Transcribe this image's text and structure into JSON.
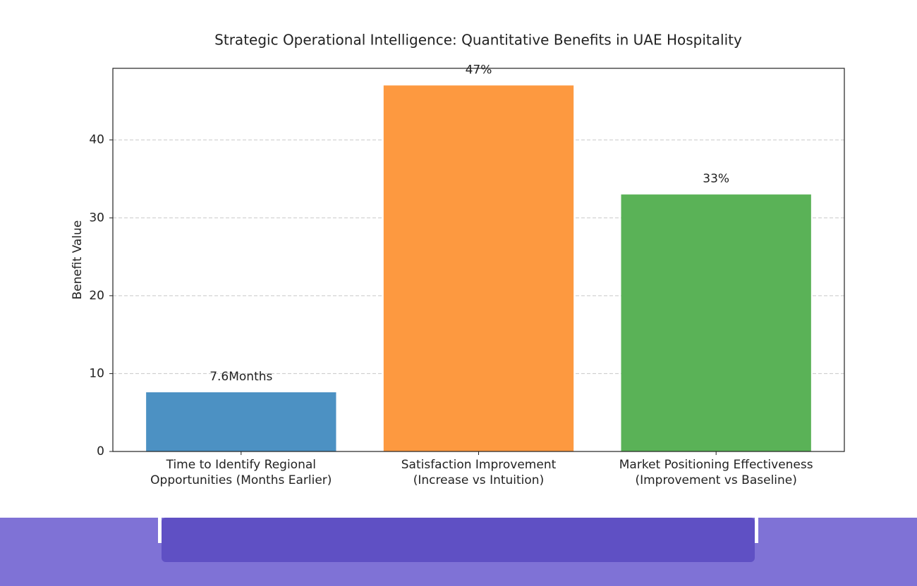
{
  "chart_data": {
    "type": "bar",
    "title": "Strategic Operational Intelligence: Quantitative Benefits in UAE Hospitality",
    "y_label": "Benefit Value",
    "categories": [
      "Time to Identify Regional\nOpportunities (Months Earlier)",
      "Satisfaction Improvement\n(Increase vs Intuition)",
      "Market Positioning Effectiveness\n(Improvement vs Baseline)"
    ],
    "values": [
      7.6,
      47,
      33
    ],
    "value_labels": [
      "7.6Months",
      "47%",
      "33%"
    ],
    "colors": [
      "#4c91c3",
      "#fd9940",
      "#5ab257"
    ],
    "ylim": [
      0,
      49.2
    ],
    "yticks": [
      0,
      10,
      20,
      30,
      40
    ],
    "grid": true
  }
}
